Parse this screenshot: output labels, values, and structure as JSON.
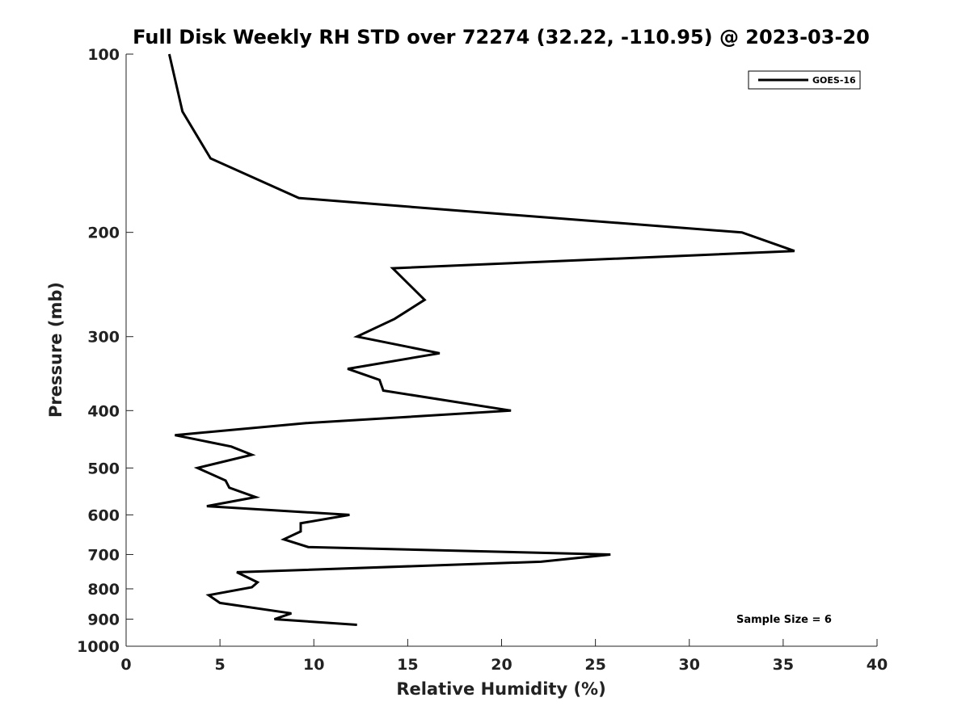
{
  "chart_data": {
    "type": "line",
    "title": "Full Disk Weekly RH STD over 72274 (32.22, -110.95) @ 2023-03-20",
    "xlabel": "Relative Humidity (%)",
    "ylabel": "Pressure (mb)",
    "xlim": [
      0,
      40
    ],
    "ylim": [
      100,
      1000
    ],
    "yscale": "log",
    "y_reversed": true,
    "x_ticks": [
      0,
      5,
      10,
      15,
      20,
      25,
      30,
      35,
      40
    ],
    "y_ticks": [
      100,
      200,
      300,
      400,
      500,
      600,
      700,
      800,
      900,
      1000
    ],
    "grid": false,
    "legend_position": "top-right",
    "series": [
      {
        "name": "GOES-16",
        "color": "#000000",
        "points": [
          [
            2.3,
            100
          ],
          [
            3.0,
            125
          ],
          [
            4.5,
            150
          ],
          [
            9.2,
            175
          ],
          [
            18.8,
            185
          ],
          [
            32.8,
            200
          ],
          [
            35.6,
            215
          ],
          [
            14.2,
            230
          ],
          [
            15.9,
            260
          ],
          [
            14.3,
            280
          ],
          [
            12.3,
            300
          ],
          [
            16.7,
            320
          ],
          [
            11.8,
            340
          ],
          [
            13.5,
            355
          ],
          [
            13.7,
            370
          ],
          [
            20.5,
            400
          ],
          [
            9.6,
            420
          ],
          [
            2.6,
            440
          ],
          [
            5.6,
            460
          ],
          [
            6.7,
            475
          ],
          [
            3.8,
            500
          ],
          [
            5.3,
            525
          ],
          [
            5.5,
            540
          ],
          [
            6.9,
            560
          ],
          [
            4.3,
            580
          ],
          [
            11.9,
            600
          ],
          [
            9.3,
            620
          ],
          [
            9.3,
            640
          ],
          [
            8.4,
            660
          ],
          [
            9.7,
            680
          ],
          [
            25.8,
            700
          ],
          [
            22.1,
            720
          ],
          [
            5.9,
            750
          ],
          [
            7.0,
            780
          ],
          [
            6.7,
            795
          ],
          [
            4.4,
            820
          ],
          [
            5.0,
            845
          ],
          [
            8.8,
            880
          ],
          [
            7.9,
            900
          ],
          [
            12.3,
            920
          ]
        ]
      }
    ],
    "annotation": "Sample Size = 6"
  }
}
